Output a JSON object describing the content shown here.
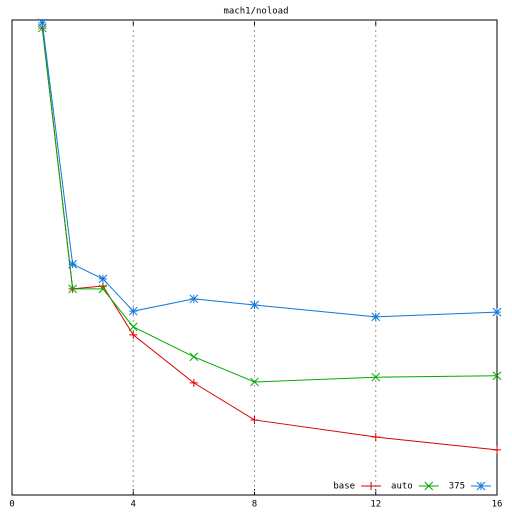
{
  "chart_data": {
    "type": "line",
    "title": "mach1/noload",
    "x": [
      1,
      2,
      3,
      4,
      6,
      8,
      12,
      16
    ],
    "series": [
      {
        "name": "base",
        "color": "#dd0000",
        "marker": "plus",
        "values": [
          98.3,
          43.4,
          44.0,
          33.7,
          23.6,
          15.8,
          12.2,
          9.5
        ]
      },
      {
        "name": "auto",
        "color": "#00aa00",
        "marker": "cross",
        "values": [
          98.3,
          43.4,
          43.4,
          35.4,
          29.1,
          23.8,
          24.8,
          25.1
        ]
      },
      {
        "name": "375",
        "color": "#1177dd",
        "marker": "star",
        "values": [
          99.4,
          48.6,
          45.5,
          38.7,
          41.3,
          40.0,
          37.5,
          38.5
        ]
      }
    ],
    "xlim": [
      0,
      16
    ],
    "xticks": [
      0,
      4,
      8,
      12,
      16
    ],
    "ylim": [
      0,
      100
    ],
    "grid": true,
    "legend": "bottom-right"
  }
}
